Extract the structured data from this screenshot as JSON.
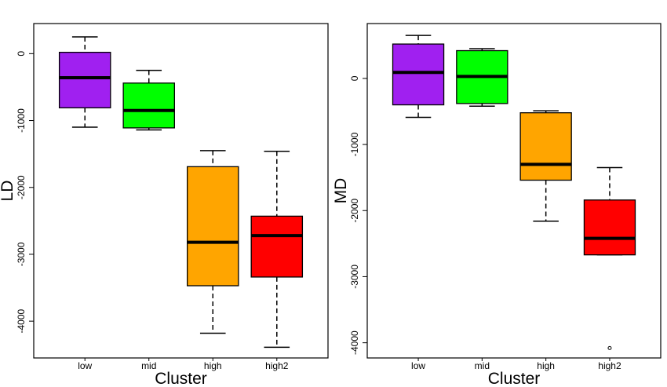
{
  "chart_data": [
    {
      "type": "boxplot",
      "xlabel": "Cluster",
      "ylabel": "LD",
      "categories": [
        "low",
        "mid",
        "high",
        "high2"
      ],
      "colors": [
        "#a020f0",
        "#00ff00",
        "#ffa500",
        "#ff0000"
      ],
      "ylim": [
        -4550,
        450
      ],
      "yticks": [
        0,
        -1000,
        -2000,
        -3000,
        -4000
      ],
      "ytick_labels": [
        "0",
        "-1000",
        "-2000",
        "-3000",
        "-4000"
      ],
      "boxes": [
        {
          "category": "low",
          "whisker_high": 250,
          "q3": 20,
          "median": -360,
          "q1": -810,
          "whisker_low": -1100,
          "outliers": []
        },
        {
          "category": "mid",
          "whisker_high": -250,
          "q3": -440,
          "median": -850,
          "q1": -1110,
          "whisker_low": -1140,
          "outliers": []
        },
        {
          "category": "high",
          "whisker_high": -1450,
          "q3": -1690,
          "median": -2820,
          "q1": -3470,
          "whisker_low": -4180,
          "outliers": []
        },
        {
          "category": "high2",
          "whisker_high": -1460,
          "q3": -2430,
          "median": -2720,
          "q1": -3340,
          "whisker_low": -4390,
          "outliers": []
        }
      ],
      "grid": false,
      "legend": "none"
    },
    {
      "type": "boxplot",
      "xlabel": "Cluster",
      "ylabel": "MD",
      "categories": [
        "low",
        "mid",
        "high",
        "high2"
      ],
      "colors": [
        "#a020f0",
        "#00ff00",
        "#ffa500",
        "#ff0000"
      ],
      "ylim": [
        -4230,
        830
      ],
      "yticks": [
        0,
        -1000,
        -2000,
        -3000,
        -4000
      ],
      "ytick_labels": [
        "0",
        "-1000",
        "-2000",
        "-3000",
        "-4000"
      ],
      "boxes": [
        {
          "category": "low",
          "whisker_high": 650,
          "q3": 520,
          "median": 90,
          "q1": -400,
          "whisker_low": -590,
          "outliers": []
        },
        {
          "category": "mid",
          "whisker_high": 450,
          "q3": 420,
          "median": 30,
          "q1": -380,
          "whisker_low": -420,
          "outliers": []
        },
        {
          "category": "high",
          "whisker_high": -490,
          "q3": -520,
          "median": -1300,
          "q1": -1540,
          "whisker_low": -2160,
          "outliers": []
        },
        {
          "category": "high2",
          "whisker_high": -1350,
          "q3": -1840,
          "median": -2420,
          "q1": -2670,
          "whisker_low": -2670,
          "outliers": [
            -4080
          ]
        }
      ],
      "grid": false,
      "legend": "none"
    }
  ]
}
